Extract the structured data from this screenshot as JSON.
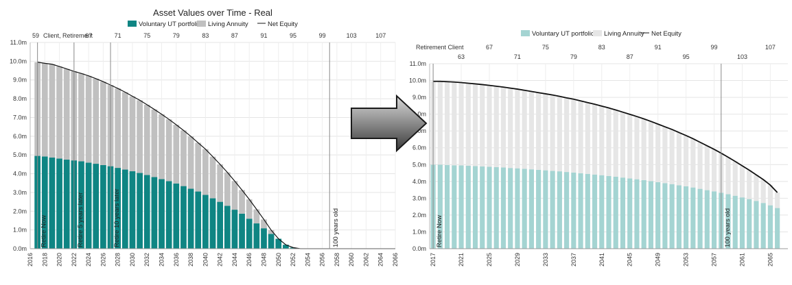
{
  "chart_data": [
    {
      "type": "bar",
      "title": "Asset Values over Time - Real",
      "subtitle": "",
      "xlabel": "",
      "ylabel": "",
      "x_range": [
        2016,
        2066
      ],
      "x_ticks": [
        "2016",
        "2018",
        "2020",
        "2022",
        "2024",
        "2026",
        "2028",
        "2030",
        "2032",
        "2034",
        "2036",
        "2038",
        "2040",
        "2042",
        "2044",
        "2046",
        "2048",
        "2050",
        "2052",
        "2054",
        "2056",
        "2058",
        "2060",
        "2062",
        "2064",
        "2066"
      ],
      "y_range": [
        0,
        11
      ],
      "y_ticks": [
        "0.0m",
        "1.0m",
        "2.0m",
        "3.0m",
        "4.0m",
        "5.0m",
        "6.0m",
        "7.0m",
        "8.0m",
        "9.0m",
        "10.0m",
        "11.0m"
      ],
      "grid": true,
      "legend_position": "top",
      "top_axis": {
        "label": "Client, Retirement",
        "ticks": [
          {
            "label": "59",
            "year": 2016
          },
          {
            "label": "67",
            "year": 2024
          },
          {
            "label": "71",
            "year": 2028
          },
          {
            "label": "75",
            "year": 2032
          },
          {
            "label": "79",
            "year": 2036
          },
          {
            "label": "83",
            "year": 2040
          },
          {
            "label": "87",
            "year": 2044
          },
          {
            "label": "91",
            "year": 2048
          },
          {
            "label": "95",
            "year": 2052
          },
          {
            "label": "99",
            "year": 2056
          },
          {
            "label": "103",
            "year": 2060
          },
          {
            "label": "107",
            "year": 2064
          }
        ]
      },
      "colors": {
        "ut": "#0f8583",
        "annuity": "#c0c0c0",
        "equity": "#111111"
      },
      "x": [
        2017,
        2018,
        2019,
        2020,
        2021,
        2022,
        2023,
        2024,
        2025,
        2026,
        2027,
        2028,
        2029,
        2030,
        2031,
        2032,
        2033,
        2034,
        2035,
        2036,
        2037,
        2038,
        2039,
        2040,
        2041,
        2042,
        2043,
        2044,
        2045,
        2046,
        2047,
        2048,
        2049,
        2050,
        2051,
        2052,
        2053,
        2054,
        2055,
        2056,
        2057,
        2058,
        2059,
        2060,
        2061,
        2062,
        2063,
        2064,
        2065,
        2066
      ],
      "series": [
        {
          "name": "Voluntary UT portfolio",
          "kind": "bar",
          "values": [
            4.95,
            4.92,
            4.86,
            4.81,
            4.75,
            4.71,
            4.66,
            4.59,
            4.53,
            4.46,
            4.4,
            4.31,
            4.22,
            4.13,
            4.04,
            3.93,
            3.82,
            3.71,
            3.6,
            3.48,
            3.34,
            3.2,
            3.05,
            2.87,
            2.69,
            2.5,
            2.29,
            2.08,
            1.87,
            1.6,
            1.35,
            1.09,
            0.79,
            0.53,
            0.21,
            0.06,
            0,
            0,
            0,
            0,
            0,
            0,
            0,
            0,
            0,
            0,
            0,
            0,
            0,
            0
          ]
        },
        {
          "name": "Living Annuity",
          "kind": "bar",
          "values": [
            5.0,
            4.97,
            4.98,
            4.91,
            4.84,
            4.75,
            4.69,
            4.63,
            4.54,
            4.45,
            4.33,
            4.24,
            4.13,
            4.0,
            3.88,
            3.75,
            3.61,
            3.46,
            3.3,
            3.13,
            2.97,
            2.79,
            2.6,
            2.44,
            2.22,
            2.0,
            1.78,
            1.53,
            1.26,
            1.03,
            0.75,
            0.47,
            0.2,
            0,
            0,
            0,
            0,
            0,
            0,
            0,
            0,
            0,
            0,
            0,
            0,
            0,
            0,
            0,
            0,
            0
          ]
        },
        {
          "name": "Net Equity",
          "kind": "line",
          "values": [
            9.95,
            9.89,
            9.84,
            9.72,
            9.59,
            9.46,
            9.35,
            9.22,
            9.07,
            8.91,
            8.73,
            8.55,
            8.35,
            8.13,
            7.92,
            7.68,
            7.43,
            7.17,
            6.9,
            6.61,
            6.31,
            5.99,
            5.65,
            5.31,
            4.91,
            4.5,
            4.07,
            3.61,
            3.13,
            2.63,
            2.1,
            1.56,
            0.99,
            0.53,
            0.21,
            0.06,
            0,
            0,
            0,
            0,
            0,
            0,
            0,
            0,
            0,
            0,
            0,
            0,
            0,
            0
          ]
        }
      ],
      "annotations": [
        {
          "label": "Retire Now",
          "year": 2017
        },
        {
          "label": "Retire 5 years later",
          "year": 2022
        },
        {
          "label": "Retire 10 years later",
          "year": 2027
        },
        {
          "label": "100 years old",
          "year": 2057
        }
      ]
    },
    {
      "type": "bar",
      "title": "",
      "subtitle": "",
      "xlabel": "",
      "ylabel": "",
      "x_range": [
        2016.5,
        2067.5
      ],
      "x_ticks": [
        "2017",
        "2021",
        "2025",
        "2029",
        "2033",
        "2037",
        "2041",
        "2045",
        "2049",
        "2053",
        "2057",
        "2061",
        "2065"
      ],
      "y_range": [
        0,
        11
      ],
      "y_ticks": [
        "0.0m",
        "1.0m",
        "2.0m",
        "3.0m",
        "4.0m",
        "5.0m",
        "6.0m",
        "7.0m",
        "8.0m",
        "9.0m",
        "10.0m",
        "11.0m"
      ],
      "grid": true,
      "legend_position": "top",
      "top_axis": {
        "label": "Retirement Client",
        "ticks": [
          {
            "label": "63",
            "year": 2021,
            "row": 2
          },
          {
            "label": "67",
            "year": 2025,
            "row": 1
          },
          {
            "label": "71",
            "year": 2029,
            "row": 2
          },
          {
            "label": "75",
            "year": 2033,
            "row": 1
          },
          {
            "label": "79",
            "year": 2037,
            "row": 2
          },
          {
            "label": "83",
            "year": 2041,
            "row": 1
          },
          {
            "label": "87",
            "year": 2045,
            "row": 2
          },
          {
            "label": "91",
            "year": 2049,
            "row": 1
          },
          {
            "label": "95",
            "year": 2053,
            "row": 2
          },
          {
            "label": "99",
            "year": 2057,
            "row": 1
          },
          {
            "label": "103",
            "year": 2061,
            "row": 2
          },
          {
            "label": "107",
            "year": 2065,
            "row": 1
          }
        ]
      },
      "colors": {
        "ut": "#a4d4d2",
        "annuity": "#e6e6e6",
        "equity": "#111111"
      },
      "x": [
        2017,
        2018,
        2019,
        2020,
        2021,
        2022,
        2023,
        2024,
        2025,
        2026,
        2027,
        2028,
        2029,
        2030,
        2031,
        2032,
        2033,
        2034,
        2035,
        2036,
        2037,
        2038,
        2039,
        2040,
        2041,
        2042,
        2043,
        2044,
        2045,
        2046,
        2047,
        2048,
        2049,
        2050,
        2051,
        2052,
        2053,
        2054,
        2055,
        2056,
        2057,
        2058,
        2059,
        2060,
        2061,
        2062,
        2063,
        2064,
        2065,
        2066
      ],
      "series": [
        {
          "name": "Voluntary UT portfolio",
          "kind": "bar",
          "values": [
            5.0,
            5.0,
            4.98,
            4.96,
            4.95,
            4.93,
            4.91,
            4.89,
            4.87,
            4.85,
            4.83,
            4.8,
            4.78,
            4.75,
            4.72,
            4.69,
            4.66,
            4.63,
            4.6,
            4.56,
            4.53,
            4.49,
            4.45,
            4.41,
            4.37,
            4.32,
            4.28,
            4.23,
            4.18,
            4.13,
            4.08,
            4.02,
            3.96,
            3.9,
            3.84,
            3.77,
            3.71,
            3.64,
            3.56,
            3.48,
            3.41,
            3.33,
            3.24,
            3.15,
            3.05,
            2.95,
            2.84,
            2.72,
            2.58,
            2.42
          ]
        },
        {
          "name": "Living Annuity",
          "kind": "bar",
          "values": [
            4.95,
            4.95,
            4.95,
            4.95,
            4.93,
            4.91,
            4.89,
            4.87,
            4.84,
            4.81,
            4.78,
            4.75,
            4.71,
            4.67,
            4.63,
            4.59,
            4.55,
            4.51,
            4.46,
            4.41,
            4.36,
            4.3,
            4.24,
            4.18,
            4.11,
            4.05,
            3.97,
            3.89,
            3.81,
            3.73,
            3.64,
            3.55,
            3.45,
            3.35,
            3.25,
            3.14,
            3.02,
            2.9,
            2.77,
            2.64,
            2.5,
            2.35,
            2.2,
            2.04,
            1.88,
            1.72,
            1.55,
            1.39,
            1.2,
            0.92
          ]
        },
        {
          "name": "Net Equity",
          "kind": "line",
          "values": [
            9.95,
            9.95,
            9.93,
            9.91,
            9.88,
            9.84,
            9.8,
            9.76,
            9.71,
            9.66,
            9.61,
            9.55,
            9.49,
            9.42,
            9.35,
            9.28,
            9.21,
            9.14,
            9.06,
            8.97,
            8.89,
            8.79,
            8.69,
            8.59,
            8.48,
            8.37,
            8.25,
            8.12,
            7.99,
            7.86,
            7.72,
            7.57,
            7.41,
            7.25,
            7.09,
            6.91,
            6.73,
            6.54,
            6.33,
            6.12,
            5.91,
            5.68,
            5.44,
            5.19,
            4.93,
            4.67,
            4.39,
            4.11,
            3.78,
            3.34
          ]
        }
      ],
      "annotations": [
        {
          "label": "Retire Now",
          "year": 2017
        },
        {
          "label": "100 years old",
          "year": 2058
        }
      ]
    }
  ]
}
